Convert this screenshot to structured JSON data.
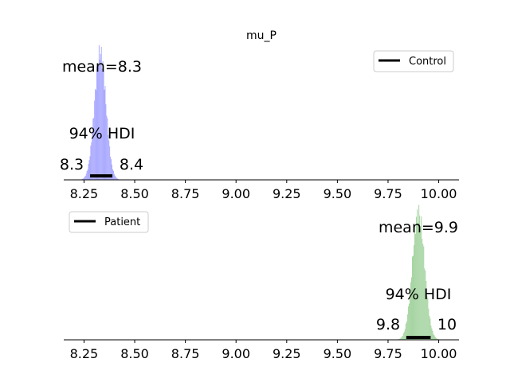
{
  "chart_data": {
    "type": "histogram",
    "title": "mu_P",
    "xlim": [
      8.15,
      10.1
    ],
    "xticks": [
      "8.25",
      "8.50",
      "8.75",
      "9.00",
      "9.25",
      "9.50",
      "9.75",
      "10.00"
    ],
    "panels": [
      {
        "legend": "Control",
        "legend_position": "top-right",
        "color": "#a8a8ff",
        "mean": 8.33,
        "mean_label": "mean=8.3",
        "hdi_label": "94% HDI",
        "hdi": [
          8.28,
          8.39
        ],
        "hdi_low_label": "8.3",
        "hdi_high_label": "8.4",
        "std": 0.028
      },
      {
        "legend": "Patient",
        "legend_position": "top-left",
        "color": "#a8d5a4",
        "mean": 9.9,
        "mean_label": "mean=9.9",
        "hdi_label": "94% HDI",
        "hdi": [
          9.84,
          9.96
        ],
        "hdi_low_label": "9.8",
        "hdi_high_label": "10",
        "std": 0.03
      }
    ]
  }
}
